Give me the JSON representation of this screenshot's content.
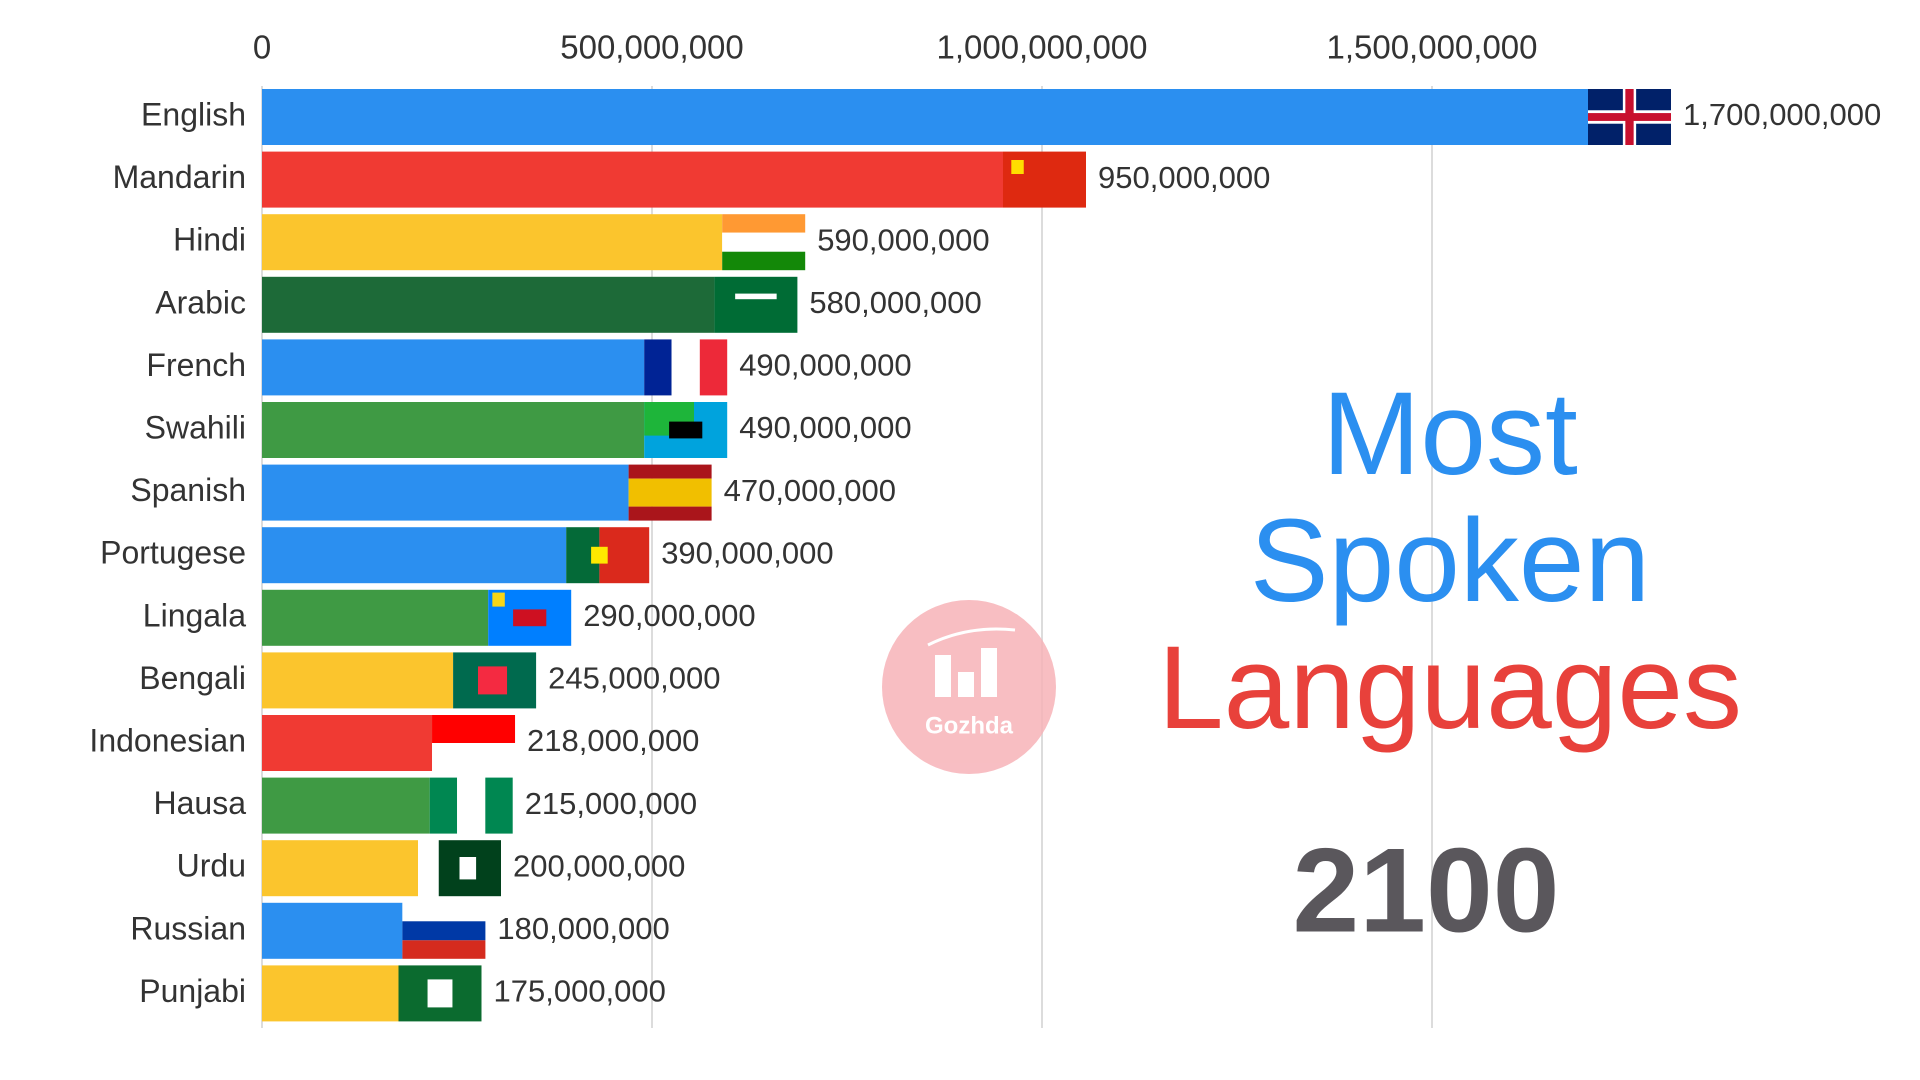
{
  "chart_data": {
    "type": "bar",
    "orientation": "horizontal",
    "categories": [
      "English",
      "Mandarin",
      "Hindi",
      "Arabic",
      "French",
      "Swahili",
      "Spanish",
      "Portugese",
      "Lingala",
      "Bengali",
      "Indonesian",
      "Hausa",
      "Urdu",
      "Russian",
      "Punjabi"
    ],
    "values": [
      1700000000,
      950000000,
      590000000,
      580000000,
      490000000,
      490000000,
      470000000,
      390000000,
      290000000,
      245000000,
      218000000,
      215000000,
      200000000,
      180000000,
      175000000
    ],
    "value_labels": [
      "1,700,000,000",
      "950,000,000",
      "590,000,000",
      "580,000,000",
      "490,000,000",
      "490,000,000",
      "470,000,000",
      "390,000,000",
      "290,000,000",
      "245,000,000",
      "218,000,000",
      "215,000,000",
      "200,000,000",
      "180,000,000",
      "175,000,000"
    ],
    "colors": [
      "#2b8ff0",
      "#f03a33",
      "#fbc52d",
      "#1d6a38",
      "#2b8ff0",
      "#3f9a44",
      "#2b8ff0",
      "#2b8ff0",
      "#3f9a44",
      "#fbc52d",
      "#f03a33",
      "#3f9a44",
      "#fbc52d",
      "#2b8ff0",
      "#fbc52d"
    ],
    "xlim": [
      0,
      2000000000
    ],
    "xticks": [
      0,
      {
        "value": 500000000,
        "label": "500,000,000"
      },
      {
        "value": 1000000000,
        "label": "1,000,000,000"
      },
      {
        "value": 1500000000,
        "label": "1,500,000,000"
      }
    ],
    "grid": true,
    "title_lines": [
      {
        "text": "Most",
        "color": "#2b8ff0"
      },
      {
        "text": "Spoken",
        "color": "#2b8ff0"
      },
      {
        "text": "Languages",
        "color": "#e8413b"
      }
    ],
    "year": 2100,
    "year_color": "#5a575c"
  },
  "watermark": "Gozhda"
}
